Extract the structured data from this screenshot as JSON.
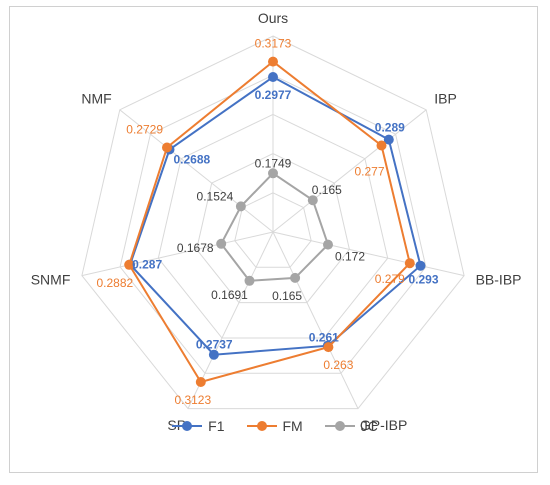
{
  "chart_data": {
    "type": "radar",
    "categories": [
      "Ours",
      "IBP",
      "BB-IBP",
      "GP-IBP",
      "SP",
      "SNMF",
      "NMF"
    ],
    "series": [
      {
        "name": "F1",
        "color": "#4472C4",
        "values": [
          0.2977,
          0.289,
          0.293,
          0.261,
          0.2737,
          0.287,
          0.2688
        ],
        "labels": [
          "0.2977",
          "0.289",
          "0.293",
          "0.261",
          "0.2737",
          "0.287",
          "0.2688"
        ]
      },
      {
        "name": "FM",
        "color": "#ED7D31",
        "values": [
          0.3173,
          0.277,
          0.279,
          0.263,
          0.3123,
          0.2882,
          0.2729
        ],
        "labels": [
          "0.3173",
          "0.277",
          "0.279",
          "0.263",
          "0.3123",
          "0.2882",
          "0.2729"
        ]
      },
      {
        "name": "JC",
        "color": "#A5A5A5",
        "values": [
          0.1749,
          0.165,
          0.172,
          0.165,
          0.1691,
          0.1678,
          0.1524
        ],
        "labels": [
          "0.1749",
          "0.165",
          "0.172",
          "0.165",
          "0.1691",
          "0.1678",
          "0.1524"
        ]
      }
    ],
    "rmin": 0.1,
    "rmax": 0.35,
    "gridlines": true,
    "legend_position": "bottom"
  }
}
